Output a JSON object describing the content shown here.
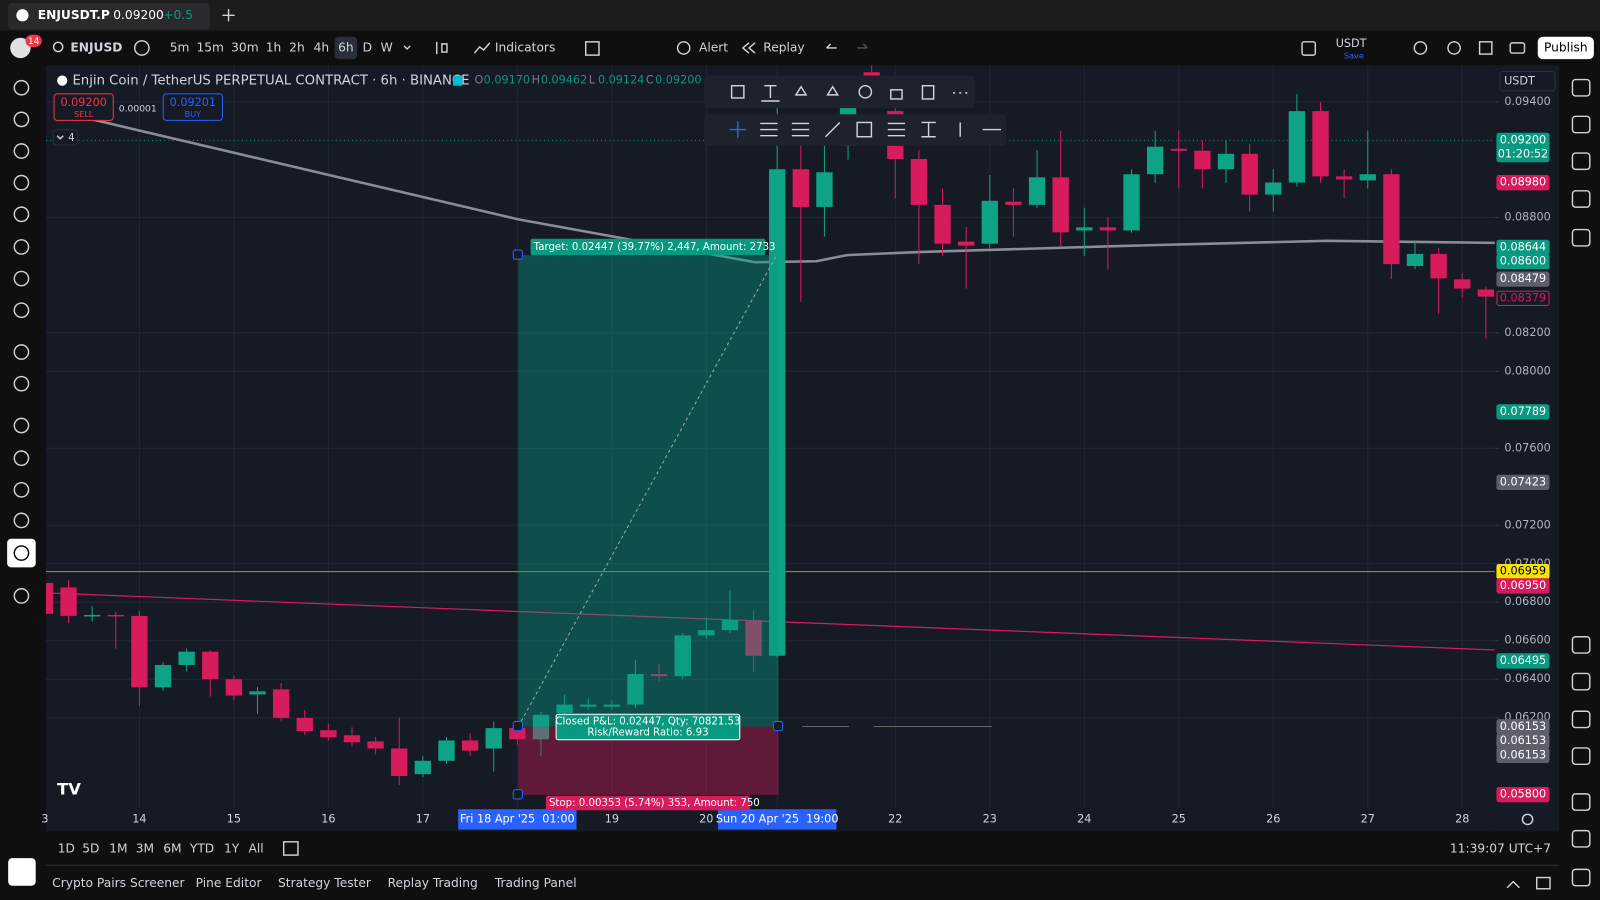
{
  "app": {
    "tab_symbol": "ENJUSDT.P",
    "tab_price": "0.09200",
    "tab_change": "+0.5",
    "notifications": "14",
    "symbol": "ENJUSD",
    "intervals": [
      "5m",
      "15m",
      "30m",
      "1h",
      "2h",
      "4h",
      "6h",
      "D",
      "W"
    ],
    "active_interval": "6h",
    "indicators": "Indicators",
    "alert": "Alert",
    "replay": "Replay",
    "currency": "USDT",
    "save": "Save",
    "publish": "Publish",
    "legend": "Enjin Coin / TetherUS PERPETUAL CONTRACT · 6h · BINANCE",
    "ohlc_letters": [
      "O",
      "H",
      "L",
      "C"
    ],
    "ohlc_values": [
      "0.09170",
      "0.09462",
      "0.09124",
      "0.09200"
    ],
    "sell_price": "0.09200",
    "sell": "SELL",
    "spread": "0.00001",
    "buy_price": "0.09201",
    "buy": "BUY",
    "collapsed_count": "4",
    "scale_currency": "USDT",
    "ranges": [
      "1D",
      "5D",
      "1M",
      "3M",
      "6M",
      "YTD",
      "1Y",
      "All"
    ],
    "clock": "11:39:07 UTC+7",
    "bottom_tabs": [
      "Crypto Pairs Screener",
      "Pine Editor",
      "Strategy Tester",
      "Replay Trading",
      "Trading Panel"
    ]
  },
  "position": {
    "target_text": "Target: 0.02447 (39.77%) 2,447, Amount: 2733",
    "closed_text": "Closed P&L: 0.02447, Qty: 70821.53",
    "ratio_text": "Risk/Reward Ratio: 6.93",
    "stop_text": "Stop: 0.00353 (5.74%) 353, Amount: 750"
  },
  "chart_data": {
    "type": "candlestick",
    "up_color": "#0fa386",
    "down_color": "#d81b5c",
    "grid": true,
    "categories": [
      "3",
      null,
      null,
      null,
      "14",
      null,
      null,
      null,
      "15",
      null,
      null,
      null,
      "16",
      null,
      null,
      null,
      "17",
      null,
      null,
      null,
      "Fri 18 Apr '25  01:00",
      null,
      null,
      null,
      "19",
      null,
      null,
      null,
      "20",
      null,
      null,
      "Sun 20 Apr '25  19:00",
      null,
      null,
      null,
      null,
      "22",
      null,
      null,
      null,
      "23",
      null,
      null,
      null,
      "24",
      null,
      null,
      null,
      "25",
      null,
      null,
      null,
      "26",
      null,
      null,
      null,
      "27",
      null,
      null,
      null,
      "28",
      null
    ],
    "open": [
      0.069,
      0.06877,
      0.06729,
      0.06734,
      0.06729,
      0.06358,
      0.06474,
      0.06543,
      0.064,
      0.06321,
      0.06347,
      0.06199,
      0.06135,
      0.06109,
      0.06077,
      0.0604,
      0.05907,
      0.05976,
      0.06082,
      0.0604,
      0.06146,
      0.06088,
      0.06225,
      0.06257,
      0.06257,
      0.06268,
      0.06427,
      0.06416,
      0.06628,
      0.06655,
      0.06708,
      0.06522,
      0.0905,
      0.08854,
      0.09172,
      0.09554,
      0.09352,
      0.09103,
      0.08865,
      0.08674,
      0.08663,
      0.08881,
      0.08865,
      0.09008,
      0.08732,
      0.08748,
      0.08732,
      0.09024,
      0.09156,
      0.09146,
      0.0905,
      0.0913,
      0.08918,
      0.08981,
      0.09352,
      0.09013,
      0.08992,
      0.09024,
      0.08547,
      0.0861,
      0.08478,
      0.08425
    ],
    "high": [
      0.0695,
      0.06914,
      0.0678,
      0.0675,
      0.06755,
      0.0649,
      0.0656,
      0.0655,
      0.0642,
      0.0636,
      0.0638,
      0.0624,
      0.0617,
      0.0615,
      0.061,
      0.062,
      0.06,
      0.061,
      0.0612,
      0.0618,
      0.0616,
      0.0623,
      0.0632,
      0.063,
      0.0629,
      0.065,
      0.0648,
      0.0664,
      0.0672,
      0.0686,
      0.0676,
      0.09501,
      0.09183,
      0.092,
      0.095,
      0.09607,
      0.0938,
      0.0915,
      0.0895,
      0.0875,
      0.0902,
      0.0895,
      0.0915,
      0.0925,
      0.0885,
      0.088,
      0.0905,
      0.0925,
      0.0925,
      0.092,
      0.092,
      0.0918,
      0.0905,
      0.0944,
      0.094,
      0.0905,
      0.0925,
      0.0905,
      0.0868,
      0.0864,
      0.0851,
      0.0844
    ],
    "low": [
      0.067,
      0.06692,
      0.067,
      0.06559,
      0.0626,
      0.0634,
      0.0644,
      0.0631,
      0.0629,
      0.0622,
      0.0618,
      0.0611,
      0.0608,
      0.0605,
      0.0601,
      0.0585,
      0.0589,
      0.0596,
      0.06,
      0.0592,
      0.0606,
      0.06,
      0.062,
      0.0624,
      0.0624,
      0.0625,
      0.0639,
      0.064,
      0.0661,
      0.0664,
      0.0644,
      0.0651,
      0.08361,
      0.087,
      0.091,
      0.094,
      0.089,
      0.08557,
      0.086,
      0.0843,
      0.0864,
      0.087,
      0.0885,
      0.0865,
      0.086,
      0.0853,
      0.0872,
      0.0898,
      0.0895,
      0.0895,
      0.0898,
      0.0883,
      0.0883,
      0.0896,
      0.0898,
      0.089,
      0.0895,
      0.0848,
      0.0853,
      0.083,
      0.0838,
      0.0817
    ],
    "close": [
      0.0674,
      0.06729,
      0.06734,
      0.06729,
      0.06358,
      0.06474,
      0.06543,
      0.064,
      0.06315,
      0.06337,
      0.06199,
      0.0613,
      0.06098,
      0.06072,
      0.0604,
      0.05897,
      0.05976,
      0.06082,
      0.06029,
      0.06146,
      0.06088,
      0.06215,
      0.06268,
      0.06268,
      0.06268,
      0.06427,
      0.06416,
      0.06628,
      0.06655,
      0.06708,
      0.06522,
      0.0905,
      0.08854,
      0.09034,
      0.09448,
      0.09448,
      0.09103,
      0.08865,
      0.08663,
      0.08653,
      0.08886,
      0.08865,
      0.09008,
      0.08722,
      0.08748,
      0.08732,
      0.09024,
      0.09167,
      0.09146,
      0.0905,
      0.0913,
      0.08918,
      0.08981,
      0.09352,
      0.09013,
      0.08997,
      0.09024,
      0.08557,
      0.0861,
      0.08483,
      0.0843,
      0.08388
    ],
    "ylim": [
      0.0573,
      0.0959
    ],
    "yticks": [
      {
        "value": 0.094,
        "label": "0.09400"
      },
      {
        "value": 0.088,
        "label": "0.08800"
      },
      {
        "value": 0.082,
        "label": "0.08200"
      },
      {
        "value": 0.08,
        "label": "0.08000"
      },
      {
        "value": 0.076,
        "label": "0.07600"
      },
      {
        "value": 0.072,
        "label": "0.07200"
      },
      {
        "value": 0.07,
        "label": "0.07000"
      },
      {
        "value": 0.068,
        "label": "0.06800"
      },
      {
        "value": 0.066,
        "label": "0.06600"
      },
      {
        "value": 0.064,
        "label": "0.06400"
      },
      {
        "value": 0.062,
        "label": "0.06200"
      }
    ],
    "price_labels": [
      {
        "value": 0.092,
        "label": "0.09200",
        "sub": "01:20:52",
        "color": "#089981"
      },
      {
        "value": 0.0898,
        "label": "0.08980",
        "color": "#d81b5c"
      },
      {
        "value": 0.08644,
        "label": "0.08644",
        "color": "#089981"
      },
      {
        "value": 0.086,
        "label": "0.08600",
        "color": "#089981"
      },
      {
        "value": 0.08479,
        "label": "0.08479",
        "color": "#5d606b"
      },
      {
        "value": 0.08379,
        "label": "0.08379",
        "color": "#d81b5c",
        "style": "outline"
      },
      {
        "value": 0.07789,
        "label": "0.07789",
        "color": "#089981"
      },
      {
        "value": 0.07423,
        "label": "0.07423",
        "color": "#5d606b"
      },
      {
        "value": 0.06959,
        "label": "0.06959",
        "color": "#f7e400"
      },
      {
        "value": 0.0695,
        "label": "0.06950",
        "color": "#d81b5c"
      },
      {
        "value": 0.06495,
        "label": "0.06495",
        "color": "#089981"
      },
      {
        "value": 0.06153,
        "label": "0.06153",
        "color": "#5d606b"
      },
      {
        "value": 0.06153,
        "label": "0.06153",
        "color": "#5d606b"
      },
      {
        "value": 0.06153,
        "label": "0.06153",
        "color": "#5d606b"
      },
      {
        "value": 0.058,
        "label": "0.05800",
        "color": "#d81b5c"
      }
    ]
  }
}
